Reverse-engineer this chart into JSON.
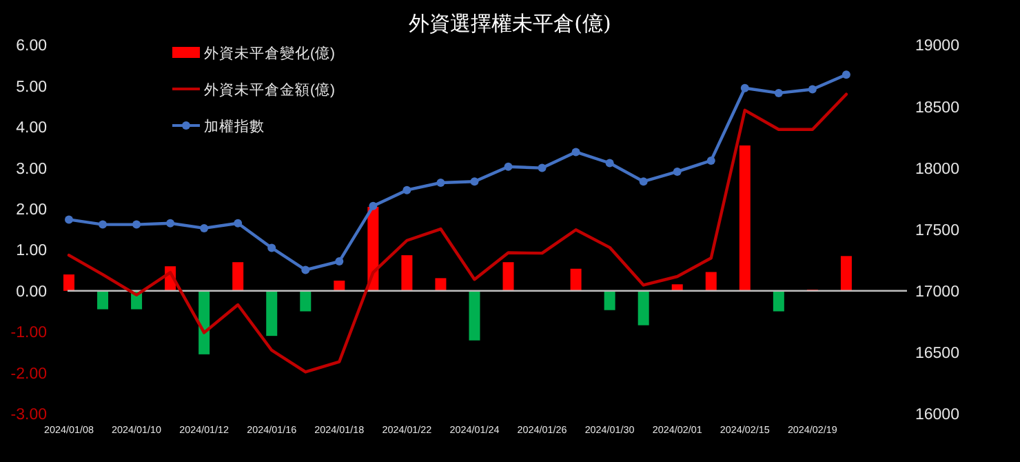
{
  "chart_data": {
    "type": "bar",
    "title": "外資選擇權未平倉(億)",
    "categories": [
      "2024/01/08",
      null,
      "2024/01/10",
      null,
      "2024/01/12",
      null,
      "2024/01/16",
      null,
      "2024/01/18",
      null,
      "2024/01/22",
      null,
      "2024/01/24",
      null,
      "2024/01/26",
      null,
      "2024/01/30",
      null,
      "2024/02/01",
      null,
      "2024/02/15",
      null,
      "2024/02/19",
      null
    ],
    "series": [
      {
        "name": "外資未平倉變化(億)",
        "colors": [
          "#ff0000",
          "#00b050",
          "#00b050",
          "#ff0000",
          "#00b050",
          "#ff0000",
          "#00b050",
          "#00b050",
          "#ff0000",
          "#ff0000",
          "#ff0000",
          "#ff0000",
          "#00b050",
          "#ff0000",
          "#ff0000",
          "#ff0000",
          "#00b050",
          "#00b050",
          "#ff0000",
          "#ff0000",
          "#ff0000",
          "#00b050",
          "#ff0000",
          "#ff0000"
        ],
        "values": [
          0.4,
          -0.45,
          -0.45,
          0.6,
          -1.55,
          0.7,
          -1.1,
          -0.5,
          0.25,
          2.05,
          0.87,
          0.31,
          -1.21,
          0.7,
          null,
          0.54,
          -0.47,
          -0.84,
          0.16,
          0.46,
          3.55,
          -0.5,
          0.03,
          0.85
        ]
      },
      {
        "name": "外資未平倉金額(億)",
        "type": "line",
        "color": "#c00000",
        "marker": "none",
        "values": [
          0.87,
          0.4,
          -0.1,
          0.45,
          -1.02,
          -0.34,
          -1.45,
          -1.98,
          -1.73,
          0.45,
          1.23,
          1.51,
          0.28,
          0.93,
          0.92,
          1.49,
          1.06,
          0.14,
          0.35,
          0.8,
          4.41,
          3.94,
          3.94,
          4.8
        ]
      },
      {
        "name": "加權指數",
        "type": "line",
        "color": "#4472c4",
        "marker": "circle",
        "axis": "y2",
        "values": [
          17580,
          17540,
          17540,
          17550,
          17510,
          17550,
          17350,
          17170,
          17240,
          17690,
          17820,
          17880,
          17890,
          18010,
          18000,
          18130,
          18040,
          17890,
          17970,
          18060,
          18650,
          18610,
          18640,
          18760
        ]
      }
    ],
    "ylim": [
      -3,
      6
    ],
    "yticks": [
      {
        "value": -3,
        "label": "-3.00"
      },
      {
        "value": -2,
        "label": "-2.00"
      },
      {
        "value": -1,
        "label": "-1.00"
      },
      {
        "value": 0,
        "label": "0.00"
      },
      {
        "value": 1,
        "label": "1.00"
      },
      {
        "value": 2,
        "label": "2.00"
      },
      {
        "value": 3,
        "label": "3.00"
      },
      {
        "value": 4,
        "label": "4.00"
      },
      {
        "value": 5,
        "label": "5.00"
      },
      {
        "value": 6,
        "label": "6.00"
      }
    ],
    "y2lim": [
      16000,
      19000
    ],
    "y2ticks": [
      16000,
      16500,
      17000,
      17500,
      18000,
      18500,
      19000
    ],
    "legend": "top left"
  }
}
